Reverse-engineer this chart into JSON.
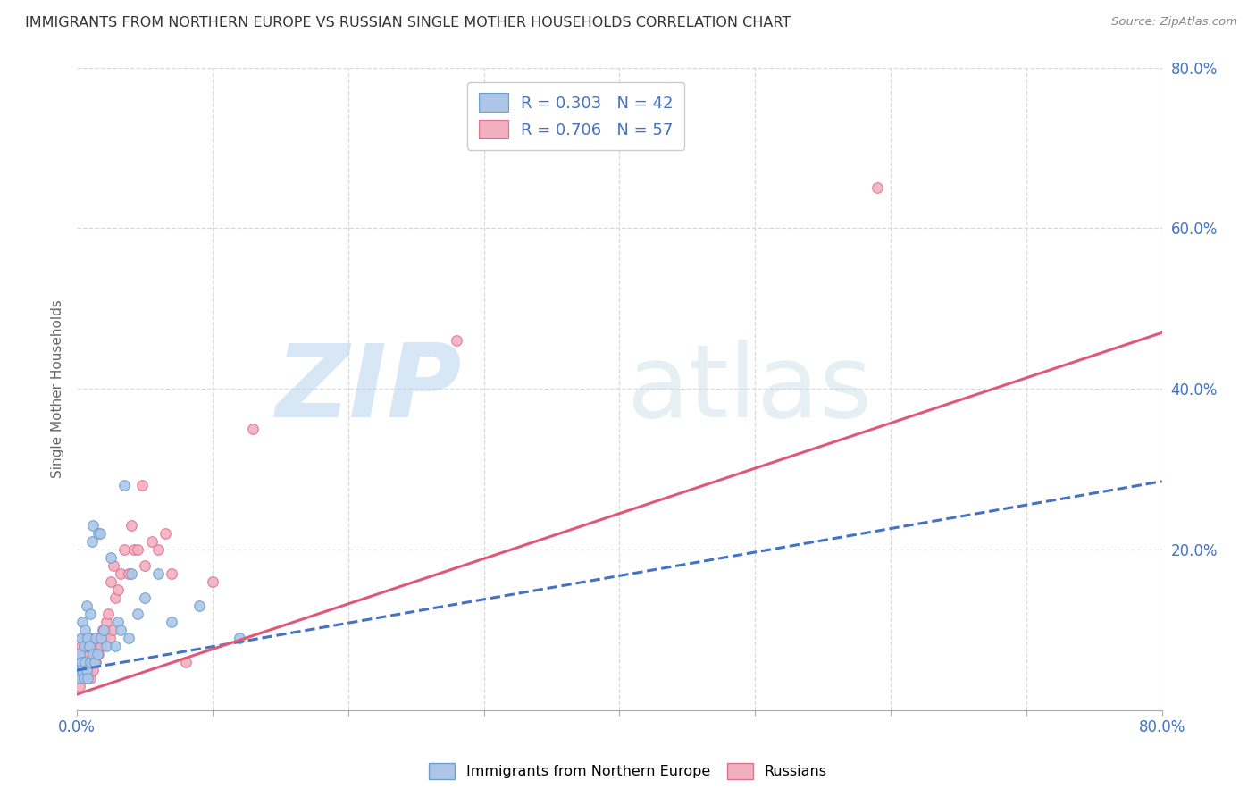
{
  "title": "IMMIGRANTS FROM NORTHERN EUROPE VS RUSSIAN SINGLE MOTHER HOUSEHOLDS CORRELATION CHART",
  "source": "Source: ZipAtlas.com",
  "ylabel": "Single Mother Households",
  "watermark_zip": "ZIP",
  "watermark_atlas": "atlas",
  "xlim": [
    0,
    0.8
  ],
  "ylim": [
    0,
    0.8
  ],
  "yticks_right": [
    0.2,
    0.4,
    0.6,
    0.8
  ],
  "ytick_right_labels": [
    "20.0%",
    "40.0%",
    "60.0%",
    "80.0%"
  ],
  "blue_R": 0.303,
  "blue_N": 42,
  "pink_R": 0.706,
  "pink_N": 57,
  "blue_color": "#adc6e8",
  "pink_color": "#f2afc0",
  "blue_edge_color": "#6a9fd0",
  "pink_edge_color": "#e07090",
  "blue_line_color": "#4472c4",
  "pink_line_color": "#e05878",
  "text_blue_color": "#4472c4",
  "text_teal_color": "#30a0a0",
  "background_color": "#ffffff",
  "grid_color": "#d8d8d8",
  "title_color": "#333333",
  "blue_scatter_x": [
    0.001,
    0.002,
    0.002,
    0.003,
    0.003,
    0.004,
    0.004,
    0.005,
    0.005,
    0.006,
    0.006,
    0.007,
    0.007,
    0.008,
    0.008,
    0.009,
    0.01,
    0.01,
    0.011,
    0.012,
    0.012,
    0.013,
    0.014,
    0.015,
    0.016,
    0.017,
    0.018,
    0.02,
    0.022,
    0.025,
    0.028,
    0.03,
    0.032,
    0.035,
    0.038,
    0.04,
    0.045,
    0.05,
    0.06,
    0.07,
    0.09,
    0.12
  ],
  "blue_scatter_y": [
    0.04,
    0.05,
    0.07,
    0.06,
    0.09,
    0.05,
    0.11,
    0.04,
    0.08,
    0.06,
    0.1,
    0.05,
    0.13,
    0.04,
    0.09,
    0.08,
    0.06,
    0.12,
    0.21,
    0.07,
    0.23,
    0.06,
    0.09,
    0.07,
    0.22,
    0.22,
    0.09,
    0.1,
    0.08,
    0.19,
    0.08,
    0.11,
    0.1,
    0.28,
    0.09,
    0.17,
    0.12,
    0.14,
    0.17,
    0.11,
    0.13,
    0.09
  ],
  "pink_scatter_x": [
    0.001,
    0.001,
    0.002,
    0.002,
    0.003,
    0.003,
    0.004,
    0.004,
    0.005,
    0.005,
    0.005,
    0.006,
    0.006,
    0.007,
    0.007,
    0.008,
    0.008,
    0.009,
    0.009,
    0.01,
    0.01,
    0.011,
    0.012,
    0.013,
    0.014,
    0.015,
    0.016,
    0.017,
    0.018,
    0.019,
    0.02,
    0.021,
    0.022,
    0.023,
    0.024,
    0.025,
    0.026,
    0.027,
    0.028,
    0.03,
    0.032,
    0.035,
    0.038,
    0.04,
    0.042,
    0.045,
    0.048,
    0.05,
    0.055,
    0.06,
    0.065,
    0.07,
    0.08,
    0.1,
    0.13,
    0.28,
    0.59
  ],
  "pink_scatter_y": [
    0.04,
    0.06,
    0.03,
    0.07,
    0.05,
    0.08,
    0.04,
    0.07,
    0.05,
    0.06,
    0.09,
    0.04,
    0.08,
    0.05,
    0.09,
    0.04,
    0.08,
    0.05,
    0.09,
    0.04,
    0.08,
    0.06,
    0.05,
    0.07,
    0.06,
    0.08,
    0.07,
    0.09,
    0.08,
    0.1,
    0.09,
    0.1,
    0.11,
    0.12,
    0.09,
    0.16,
    0.1,
    0.18,
    0.14,
    0.15,
    0.17,
    0.2,
    0.17,
    0.23,
    0.2,
    0.2,
    0.28,
    0.18,
    0.21,
    0.2,
    0.22,
    0.17,
    0.06,
    0.16,
    0.35,
    0.46,
    0.65
  ],
  "dot_size": 70,
  "legend_fontsize": 13,
  "title_fontsize": 11.5
}
